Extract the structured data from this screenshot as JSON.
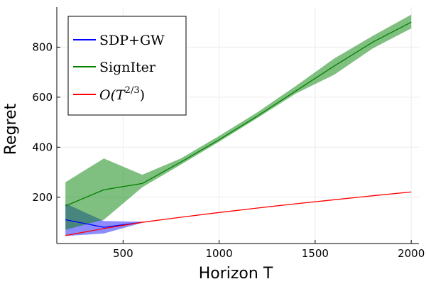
{
  "chart_data": {
    "type": "line",
    "xlabel": "Horizon T",
    "ylabel": "Regret",
    "xlim": [
      155,
      2040
    ],
    "ylim": [
      15,
      960
    ],
    "xticks": [
      500,
      1000,
      1500,
      2000
    ],
    "yticks": [
      200,
      400,
      600,
      800
    ],
    "grid": true,
    "legend_position": "top-left",
    "series": [
      {
        "name": "SDP+GW",
        "color": "#0000ff",
        "band_opacity": 0.45,
        "x": [
          200,
          400,
          600
        ],
        "values": [
          110,
          80,
          100
        ],
        "lower": [
          45,
          55,
          98
        ],
        "upper": [
          175,
          105,
          102
        ]
      },
      {
        "name": "SignIter",
        "color": "#008000",
        "band_opacity": 0.5,
        "x": [
          200,
          400,
          600,
          800,
          1000,
          1200,
          1400,
          1600,
          1800,
          2000
        ],
        "values": [
          165,
          230,
          255,
          340,
          430,
          525,
          625,
          725,
          820,
          900
        ],
        "lower": [
          70,
          110,
          240,
          330,
          422,
          517,
          615,
          690,
          795,
          875
        ],
        "upper": [
          260,
          355,
          290,
          355,
          445,
          540,
          645,
          755,
          845,
          930
        ]
      },
      {
        "name": "O(T^{2/3})",
        "legend_main": "O(T",
        "legend_sup": "2/3",
        "legend_close": ")",
        "color": "#ff0000",
        "x": [
          200,
          400,
          600,
          800,
          1000,
          1200,
          1400,
          1600,
          1800,
          2000
        ],
        "values": [
          47,
          75,
          100,
          120,
          139,
          157,
          174,
          190,
          206,
          221
        ]
      }
    ]
  }
}
